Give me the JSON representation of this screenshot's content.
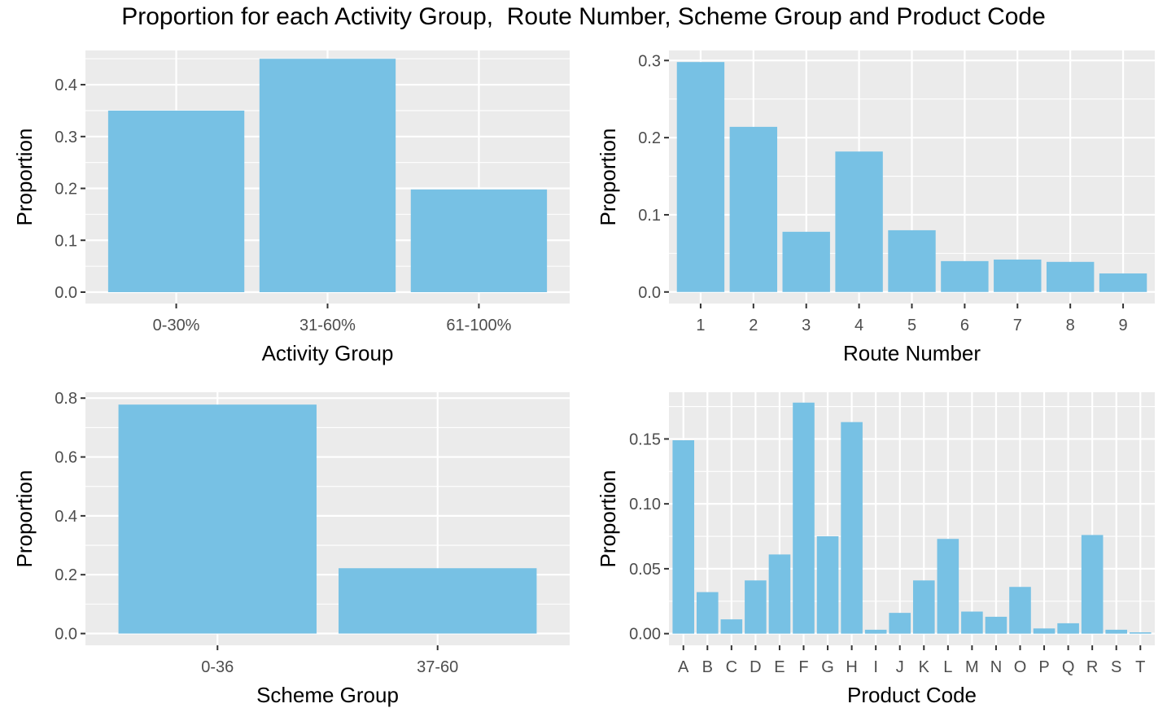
{
  "title": "Proportion for each Activity Group,  Route Number, Scheme Group and Product Code",
  "colors": {
    "bar": "#77c1e4",
    "panel_bg": "#ebebeb",
    "grid": "#ffffff",
    "tick_text": "#4d4d4d",
    "label_text": "#000000"
  },
  "chart_data": [
    {
      "type": "bar",
      "xlabel": "Activity Group",
      "ylabel": "Proportion",
      "ylim": [
        -0.022,
        0.466
      ],
      "yticks": [
        0.0,
        0.1,
        0.2,
        0.3,
        0.4
      ],
      "ytick_labels": [
        "0.0",
        "0.1",
        "0.2",
        "0.3",
        "0.4"
      ],
      "categories": [
        "0-30%",
        "31-60%",
        "61-100%"
      ],
      "values": [
        0.35,
        0.45,
        0.198
      ],
      "grid": true
    },
    {
      "type": "bar",
      "xlabel": "Route Number",
      "ylabel": "Proportion",
      "ylim": [
        -0.015,
        0.313
      ],
      "yticks": [
        0.0,
        0.1,
        0.2,
        0.3
      ],
      "ytick_labels": [
        "0.0",
        "0.1",
        "0.2",
        "0.3"
      ],
      "categories": [
        "1",
        "2",
        "3",
        "4",
        "5",
        "6",
        "7",
        "8",
        "9"
      ],
      "values": [
        0.298,
        0.214,
        0.078,
        0.182,
        0.08,
        0.04,
        0.042,
        0.039,
        0.024
      ],
      "grid": true
    },
    {
      "type": "bar",
      "xlabel": "Scheme Group",
      "ylabel": "Proportion",
      "ylim": [
        -0.04,
        0.82
      ],
      "yticks": [
        0.0,
        0.2,
        0.4,
        0.6,
        0.8
      ],
      "ytick_labels": [
        "0.0",
        "0.2",
        "0.4",
        "0.6",
        "0.8"
      ],
      "categories": [
        "0-36",
        "37-60"
      ],
      "values": [
        0.778,
        0.222
      ],
      "grid": true
    },
    {
      "type": "bar",
      "xlabel": "Product Code",
      "ylabel": "Proportion",
      "ylim": [
        -0.009,
        0.186
      ],
      "yticks": [
        0.0,
        0.05,
        0.1,
        0.15
      ],
      "ytick_labels": [
        "0.00",
        "0.05",
        "0.10",
        "0.15"
      ],
      "categories": [
        "A",
        "B",
        "C",
        "D",
        "E",
        "F",
        "G",
        "H",
        "I",
        "J",
        "K",
        "L",
        "M",
        "N",
        "O",
        "P",
        "Q",
        "R",
        "S",
        "T"
      ],
      "values": [
        0.149,
        0.032,
        0.011,
        0.041,
        0.061,
        0.178,
        0.075,
        0.163,
        0.003,
        0.016,
        0.041,
        0.073,
        0.017,
        0.013,
        0.036,
        0.004,
        0.008,
        0.076,
        0.003,
        0.001
      ],
      "grid": true
    }
  ]
}
